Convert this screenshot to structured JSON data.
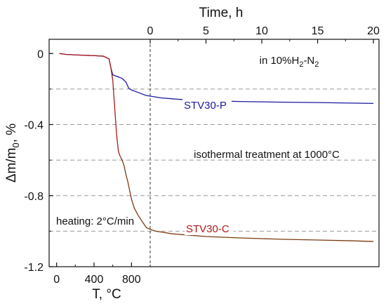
{
  "chart_data": {
    "type": "line",
    "title": "",
    "ylabel_main": "Δm/m",
    "ylabel_sub": "0",
    "ylabel_unit": ", %",
    "xlabel_bottom": "T, °C",
    "xlabel_top": "Time, h",
    "ylim": [
      -1.2,
      0.08
    ],
    "y_ticks": [
      0,
      -0.4,
      -0.8,
      -1.2
    ],
    "y_tick_labels": [
      "0",
      "-0.4",
      "-0.8",
      "-1.2"
    ],
    "y_gridlines": [
      -0.2,
      -0.4,
      -0.6,
      -0.8,
      -1.0
    ],
    "x_bottom_ticks": [
      0,
      400,
      800
    ],
    "x_bottom_tick_labels": [
      "0",
      "400",
      "800"
    ],
    "x_top_ticks": [
      0,
      5,
      10,
      15,
      20
    ],
    "x_top_tick_labels": [
      "0",
      "5",
      "10",
      "15",
      "20"
    ],
    "heating_range_T": [
      -80,
      1000
    ],
    "isothermal_range_h": [
      0,
      20.5
    ],
    "atmosphere_label_prefix": "in 10%H",
    "atmosphere_label_sub1": "2",
    "atmosphere_label_suffix": "-N",
    "atmosphere_label_sub2": "2",
    "annotation_isothermal": "isothermal treatment at 1000°C",
    "annotation_heating": "heating: 2°C/min",
    "series": [
      {
        "name": "STV30-P",
        "color": "#1a1aa0",
        "heating": {
          "T": [
            30,
            100,
            200,
            300,
            400,
            500,
            560,
            580,
            600,
            650,
            700,
            740,
            770,
            800,
            850,
            900,
            950,
            1000
          ],
          "y": [
            0,
            -0.005,
            -0.008,
            -0.01,
            -0.012,
            -0.015,
            -0.03,
            -0.08,
            -0.12,
            -0.13,
            -0.14,
            -0.16,
            -0.195,
            -0.205,
            -0.215,
            -0.225,
            -0.235,
            -0.24
          ]
        },
        "isothermal": {
          "t": [
            0,
            0.5,
            1,
            2,
            3,
            5,
            8,
            10,
            12,
            15,
            18,
            20
          ],
          "y": [
            -0.24,
            -0.245,
            -0.25,
            -0.255,
            -0.26,
            -0.265,
            -0.27,
            -0.272,
            -0.274,
            -0.276,
            -0.279,
            -0.281
          ]
        }
      },
      {
        "name": "STV30-C",
        "color": "#b01818",
        "color_late": "#7a3a10",
        "heating": {
          "T": [
            30,
            100,
            200,
            300,
            400,
            500,
            560,
            580,
            600,
            620,
            640,
            660,
            680,
            700,
            720,
            740,
            760,
            780,
            800,
            830,
            870,
            920,
            960,
            1000
          ],
          "y": [
            0,
            -0.005,
            -0.008,
            -0.01,
            -0.012,
            -0.015,
            -0.03,
            -0.08,
            -0.15,
            -0.3,
            -0.45,
            -0.55,
            -0.58,
            -0.6,
            -0.63,
            -0.68,
            -0.72,
            -0.77,
            -0.82,
            -0.87,
            -0.91,
            -0.95,
            -0.98,
            -0.99
          ]
        },
        "isothermal": {
          "t": [
            0,
            0.5,
            1,
            2,
            3,
            5,
            8,
            10,
            12,
            15,
            18,
            20
          ],
          "y": [
            -0.99,
            -1.0,
            -1.005,
            -1.015,
            -1.02,
            -1.03,
            -1.038,
            -1.042,
            -1.046,
            -1.05,
            -1.054,
            -1.058
          ]
        }
      }
    ]
  }
}
